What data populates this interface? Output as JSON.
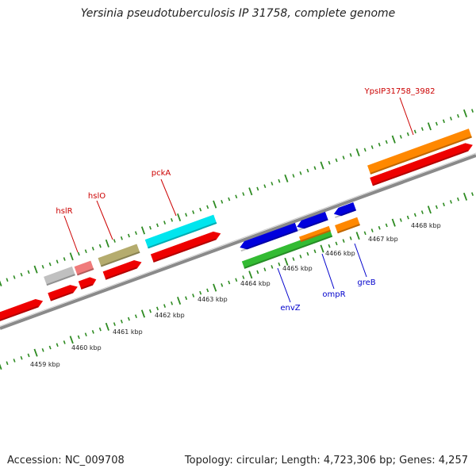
{
  "title": "Yersinia pseudotuberculosis IP 31758, complete genome",
  "footer": {
    "accession": "Accession: NC_009708",
    "summary": "Topology: circular; Length: 4,723,306 bp; Genes: 4,257"
  },
  "tick_labels": [
    "4459 kbp",
    "4460 kbp",
    "4461 kbp",
    "4462 kbp",
    "4463 kbp",
    "4464 kbp",
    "4465 kbp",
    "4466 kbp",
    "4467 kbp",
    "4468 kbp"
  ],
  "genes": {
    "hslR": {
      "label": "hslR",
      "color": "#cc0000"
    },
    "hslO": {
      "label": "hslO",
      "color": "#cc0000"
    },
    "pckA": {
      "label": "pckA",
      "color": "#cc0000"
    },
    "ypsip": {
      "label": "YpsIP31758_3982",
      "color": "#cc0000"
    },
    "envZ": {
      "label": "envZ",
      "color": "#0000cc"
    },
    "ompR": {
      "label": "ompR",
      "color": "#0000cc"
    },
    "greB": {
      "label": "greB",
      "color": "#0000cc"
    }
  },
  "colors": {
    "backbone": "#8a8a8a",
    "ticks": "#2e8b22",
    "cds": "#ee0000",
    "blue": "#0000dd",
    "green": "#33bb33",
    "orange": "#ff8800",
    "cyan": "#00e5ee",
    "olive": "#b5ac6e",
    "grey": "#c0c0c0",
    "pink": "#f07b7b"
  }
}
